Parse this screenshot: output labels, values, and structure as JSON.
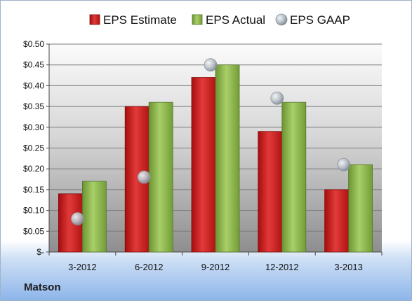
{
  "company": "Matson",
  "chart_data": {
    "type": "bar",
    "categories": [
      "3-2012",
      "6-2012",
      "9-2012",
      "12-2012",
      "3-2013"
    ],
    "series": [
      {
        "name": "EPS Estimate",
        "type": "bar",
        "color": "#cc1f1f",
        "values": [
          0.14,
          0.35,
          0.42,
          0.29,
          0.15
        ]
      },
      {
        "name": "EPS Actual",
        "type": "bar",
        "color": "#8ab545",
        "values": [
          0.17,
          0.36,
          0.45,
          0.36,
          0.21
        ]
      },
      {
        "name": "EPS GAAP",
        "type": "marker",
        "color": "#b9c3cc",
        "values": [
          0.08,
          0.18,
          0.45,
          0.37,
          0.21
        ]
      }
    ],
    "yticks": [
      0,
      0.05,
      0.1,
      0.15,
      0.2,
      0.25,
      0.3,
      0.35,
      0.4,
      0.45,
      0.5
    ],
    "ytick_labels": [
      "$-",
      "$0.05",
      "$0.10",
      "$0.15",
      "$0.20",
      "$0.25",
      "$0.30",
      "$0.35",
      "$0.40",
      "$0.45",
      "$0.50"
    ],
    "ylim": [
      0,
      0.5
    ],
    "grid": true,
    "legend_position": "top"
  }
}
